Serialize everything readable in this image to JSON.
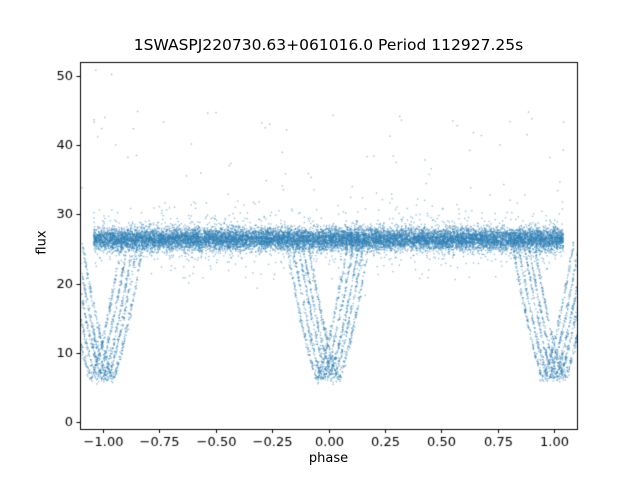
{
  "figure": {
    "background": "#ffffff"
  },
  "chart_data": {
    "type": "scatter",
    "title": "1SWASPJ220730.63+061016.0 Period 112927.25s",
    "xlabel": "phase",
    "ylabel": "flux",
    "xlim": [
      -1.1,
      1.1
    ],
    "ylim": [
      -1,
      52
    ],
    "xticks": [
      -1.0,
      -0.75,
      -0.5,
      -0.25,
      0.0,
      0.25,
      0.5,
      0.75,
      1.0
    ],
    "yticks": [
      0,
      10,
      20,
      30,
      40,
      50
    ],
    "grid": false,
    "legend": "none",
    "marker": {
      "color": "#2f7fb5",
      "alpha": 0.55,
      "size": 1.3
    },
    "series_description": "Folded SuperWASP light curve: dense out-of-eclipse band at flux ~26-27 across phase -1..1, deep V-shaped eclipses reaching flux ~6.4 at phase 0 and +/-1 smeared into several parallel tracks, sparse high outliers between flux 30 and 51",
    "model": {
      "seed": 20220730,
      "baseline": {
        "count": 15000,
        "phase_range": [
          -1.04,
          1.04
        ],
        "flux_mean": 26.4,
        "flux_sd": 0.8,
        "tail_frac": 0.07,
        "tail_sd": 2.4
      },
      "eclipses": {
        "centers": [
          -1,
          0,
          1
        ],
        "half_width": 0.135,
        "min_flux": 6.4,
        "track_offsets": [
          -0.05,
          -0.025,
          0,
          0.02,
          0.045
        ],
        "points_per_track": 300,
        "shape_exponent": 1.3,
        "noise_sd": 0.45,
        "shoulder_flux": 25.6
      },
      "high_outliers": {
        "count": 55,
        "flux_min": 30,
        "flux_max": 45
      },
      "extreme_points": [
        [
          -1.03,
          50.8
        ],
        [
          -0.96,
          50.2
        ],
        [
          -0.99,
          44.0
        ],
        [
          0.02,
          44.3
        ],
        [
          -0.28,
          42.5
        ],
        [
          -0.26,
          43.0
        ],
        [
          0.55,
          43.5
        ],
        [
          0.57,
          42.8
        ],
        [
          0.9,
          43.8
        ],
        [
          0.88,
          41.5
        ],
        [
          -0.85,
          38.5
        ],
        [
          0.3,
          37.5
        ],
        [
          0.98,
          38.2
        ],
        [
          -1.02,
          11.6
        ],
        [
          -1.01,
          12.2
        ],
        [
          -1.0,
          11.0
        ]
      ]
    }
  }
}
